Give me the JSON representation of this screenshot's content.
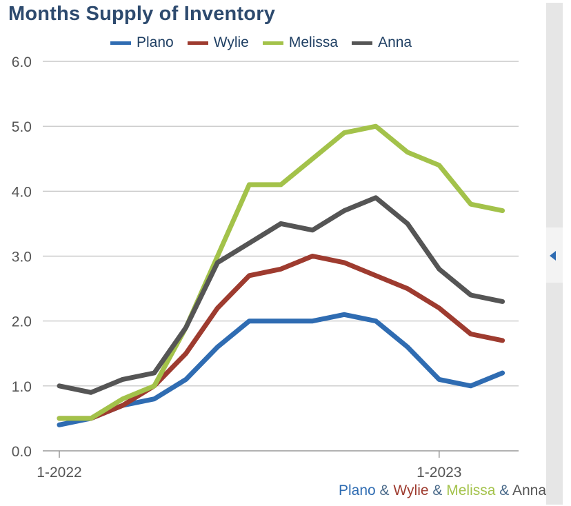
{
  "chart_data": {
    "type": "line",
    "title": "Months Supply of Inventory",
    "x": [
      "1-2022",
      "2-2022",
      "3-2022",
      "4-2022",
      "5-2022",
      "6-2022",
      "7-2022",
      "8-2022",
      "9-2022",
      "10-2022",
      "11-2022",
      "12-2022",
      "1-2023",
      "2-2023",
      "3-2023"
    ],
    "x_tick_labels": [
      {
        "index": 0,
        "label": "1-2022"
      },
      {
        "index": 12,
        "label": "1-2023"
      }
    ],
    "ylim": [
      0,
      6
    ],
    "y_ticks": [
      "0.0",
      "1.0",
      "2.0",
      "3.0",
      "4.0",
      "5.0",
      "6.0"
    ],
    "grid": true,
    "legend_position": "top",
    "series": [
      {
        "name": "Plano",
        "color": "#2f6cb2",
        "values": [
          0.4,
          0.5,
          0.7,
          0.8,
          1.1,
          1.6,
          2.0,
          2.0,
          2.0,
          2.1,
          2.0,
          1.6,
          1.1,
          1.0,
          1.2
        ]
      },
      {
        "name": "Wylie",
        "color": "#9e3b2f",
        "values": [
          0.5,
          0.5,
          0.7,
          1.0,
          1.5,
          2.2,
          2.7,
          2.8,
          3.0,
          2.9,
          2.7,
          2.5,
          2.2,
          1.8,
          1.7
        ]
      },
      {
        "name": "Melissa",
        "color": "#a3c24a",
        "values": [
          0.5,
          0.5,
          0.8,
          1.0,
          1.9,
          3.0,
          4.1,
          4.1,
          4.5,
          4.9,
          5.0,
          4.6,
          4.4,
          3.8,
          3.7
        ]
      },
      {
        "name": "Anna",
        "color": "#555555",
        "values": [
          1.0,
          0.9,
          1.1,
          1.2,
          1.9,
          2.9,
          3.2,
          3.5,
          3.4,
          3.7,
          3.9,
          3.5,
          2.8,
          2.4,
          2.3
        ]
      }
    ]
  },
  "footer": {
    "parts": [
      {
        "text": "Plano",
        "color": "#2f6cb2"
      },
      {
        "text": " & ",
        "color": "#4a6a8a"
      },
      {
        "text": "Wylie",
        "color": "#9e3b2f"
      },
      {
        "text": " & ",
        "color": "#4a6a8a"
      },
      {
        "text": "Melissa",
        "color": "#a3c24a"
      },
      {
        "text": " & ",
        "color": "#4a6a8a"
      },
      {
        "text": "Anna",
        "color": "#555555"
      }
    ]
  },
  "colors": {
    "title": "#2d4a6e",
    "axis_text": "#555555",
    "grid": "#bdbdbd"
  },
  "panel": {
    "collapse_icon": "chevron-left-icon"
  }
}
